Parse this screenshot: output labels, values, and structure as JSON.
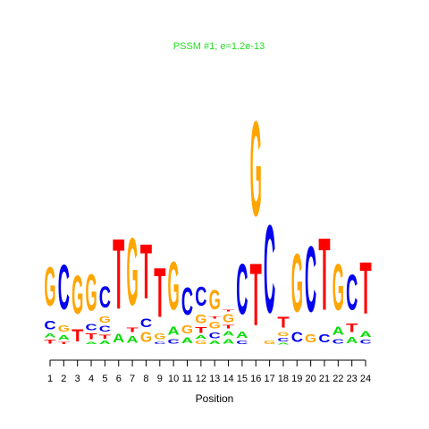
{
  "chart_data": {
    "type": "sequence-logo",
    "title": "PSSM #1; e=1.2e-13",
    "title_color": "#22dd22",
    "xlabel": "Position",
    "ylabel": "",
    "positions": [
      "1",
      "2",
      "3",
      "4",
      "5",
      "6",
      "7",
      "8",
      "9",
      "10",
      "11",
      "12",
      "13",
      "14",
      "15",
      "16",
      "17",
      "18",
      "19",
      "20",
      "21",
      "22",
      "23",
      "24"
    ],
    "alphabet_colors": {
      "A": "#00dd00",
      "C": "#0000ee",
      "G": "#ffa500",
      "T": "#ff0000"
    },
    "columns": [
      [
        [
          "T",
          0.05
        ],
        [
          "A",
          0.05
        ],
        [
          "C",
          0.11
        ],
        [
          "G",
          0.49
        ]
      ],
      [
        [
          "T",
          0.03
        ],
        [
          "A",
          0.06
        ],
        [
          "G",
          0.08
        ],
        [
          "C",
          0.56
        ]
      ],
      [
        [
          "T",
          0.15
        ],
        [
          "G",
          0.48
        ]
      ],
      [
        [
          "A",
          0.03
        ],
        [
          "T",
          0.07
        ],
        [
          "C",
          0.08
        ],
        [
          "G",
          0.46
        ]
      ],
      [
        [
          "A",
          0.04
        ],
        [
          "T",
          0.05
        ],
        [
          "C",
          0.07
        ],
        [
          "G",
          0.08
        ],
        [
          "C",
          0.27
        ]
      ],
      [
        [
          "A",
          0.11
        ],
        [
          "T",
          0.88
        ]
      ],
      [
        [
          "A",
          0.09
        ],
        [
          "T",
          0.06
        ],
        [
          "G",
          0.84
        ]
      ],
      [
        [
          "G",
          0.12
        ],
        [
          "C",
          0.11
        ],
        [
          "T",
          0.68
        ]
      ],
      [
        [
          "C",
          0.03
        ],
        [
          "G",
          0.07
        ],
        [
          "T",
          0.62
        ]
      ],
      [
        [
          "C",
          0.06
        ],
        [
          "A",
          0.1
        ],
        [
          "G",
          0.6
        ]
      ],
      [
        [
          "A",
          0.07
        ],
        [
          "G",
          0.1
        ],
        [
          "C",
          0.34
        ]
      ],
      [
        [
          "G",
          0.04
        ],
        [
          "A",
          0.04
        ],
        [
          "T",
          0.07
        ],
        [
          "G",
          0.11
        ],
        [
          "C",
          0.24
        ]
      ],
      [
        [
          "A",
          0.04
        ],
        [
          "C",
          0.07
        ],
        [
          "G",
          0.09
        ],
        [
          "T",
          0.03
        ],
        [
          "G",
          0.25
        ]
      ],
      [
        [
          "A",
          0.06
        ],
        [
          "A",
          0.06
        ],
        [
          "T",
          0.04
        ],
        [
          "G",
          0.1
        ],
        [
          "T",
          0.02
        ]
      ],
      [
        [
          "C",
          0.04
        ],
        [
          "A",
          0.08
        ],
        [
          "C",
          0.63
        ]
      ],
      [
        [
          "T",
          0.78
        ],
        [
          "G",
          1.19
        ]
      ],
      [
        [
          "G",
          0.04
        ],
        [
          "C",
          1.1
        ]
      ],
      [
        [
          "A",
          0.02
        ],
        [
          "C",
          0.04
        ],
        [
          "G",
          0.05
        ],
        [
          "T",
          0.14
        ]
      ],
      [
        [
          "C",
          0.12
        ],
        [
          "G",
          0.73
        ]
      ],
      [
        [
          "G",
          0.1
        ],
        [
          "C",
          0.82
        ]
      ],
      [
        [
          "C",
          0.1
        ],
        [
          "T",
          0.9
        ]
      ],
      [
        [
          "C",
          0.06
        ],
        [
          "A",
          0.1
        ],
        [
          "G",
          0.58
        ]
      ],
      [
        [
          "A",
          0.08
        ],
        [
          "T",
          0.11
        ],
        [
          "C",
          0.44
        ]
      ],
      [
        [
          "C",
          0.05
        ],
        [
          "A",
          0.07
        ],
        [
          "T",
          0.65
        ]
      ]
    ]
  }
}
